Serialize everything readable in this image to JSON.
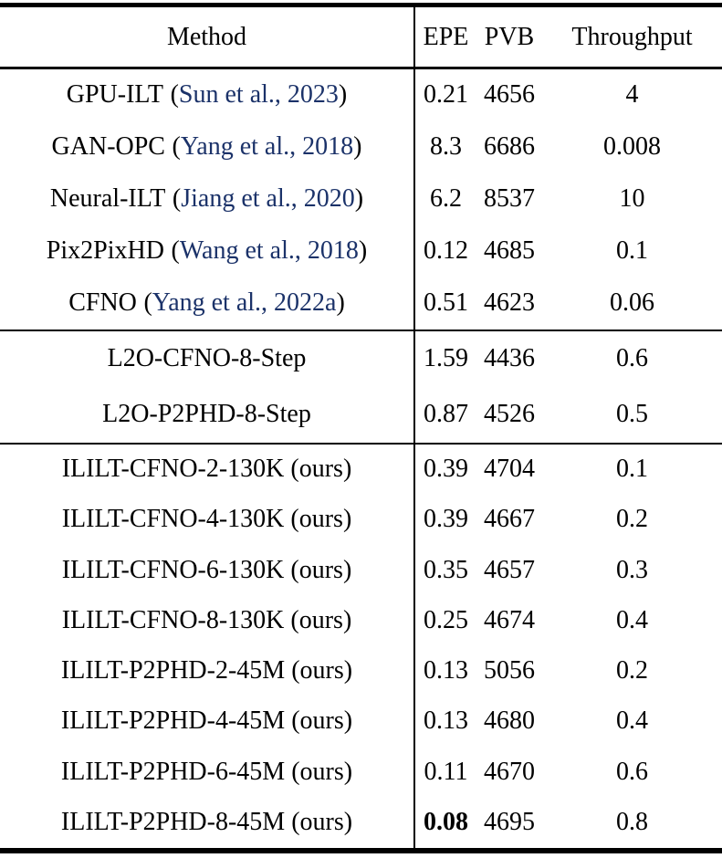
{
  "style": {
    "citation_color": "#1b3269",
    "text_color": "#000000",
    "rule_color": "#000000"
  },
  "header": {
    "method": "Method",
    "epe": "EPE",
    "pvb": "PVB",
    "throughput": "Throughput"
  },
  "sections": [
    {
      "rows": [
        {
          "method_name": "GPU-ILT",
          "citation": "Sun et al., 2023",
          "epe": "0.21",
          "pvb": "4656",
          "throughput": "4"
        },
        {
          "method_name": "GAN-OPC",
          "citation": "Yang et al., 2018",
          "epe": "8.3",
          "pvb": "6686",
          "throughput": "0.008"
        },
        {
          "method_name": "Neural-ILT",
          "citation": "Jiang et al., 2020",
          "epe": "6.2",
          "pvb": "8537",
          "throughput": "10"
        },
        {
          "method_name": "Pix2PixHD",
          "citation": "Wang et al., 2018",
          "epe": "0.12",
          "pvb": "4685",
          "throughput": "0.1"
        },
        {
          "method_name": "CFNO",
          "citation": "Yang et al., 2022a",
          "epe": "0.51",
          "pvb": "4623",
          "throughput": "0.06"
        }
      ]
    },
    {
      "rows": [
        {
          "method_name": "L2O-CFNO-8-Step",
          "epe": "1.59",
          "pvb": "4436",
          "throughput": "0.6"
        },
        {
          "method_name": "L2O-P2PHD-8-Step",
          "epe": "0.87",
          "pvb": "4526",
          "throughput": "0.5"
        }
      ]
    },
    {
      "rows": [
        {
          "method_name": "ILILT-CFNO-2-130K (ours)",
          "epe": "0.39",
          "pvb": "4704",
          "throughput": "0.1"
        },
        {
          "method_name": "ILILT-CFNO-4-130K (ours)",
          "epe": "0.39",
          "pvb": "4667",
          "throughput": "0.2"
        },
        {
          "method_name": "ILILT-CFNO-6-130K (ours)",
          "epe": "0.35",
          "pvb": "4657",
          "throughput": "0.3"
        },
        {
          "method_name": "ILILT-CFNO-8-130K (ours)",
          "epe": "0.25",
          "pvb": "4674",
          "throughput": "0.4"
        },
        {
          "method_name": "ILILT-P2PHD-2-45M (ours)",
          "epe": "0.13",
          "pvb": "5056",
          "throughput": "0.2"
        },
        {
          "method_name": "ILILT-P2PHD-4-45M (ours)",
          "epe": "0.13",
          "pvb": "4680",
          "throughput": "0.4"
        },
        {
          "method_name": "ILILT-P2PHD-6-45M (ours)",
          "epe": "0.11",
          "pvb": "4670",
          "throughput": "0.6"
        },
        {
          "method_name": "ILILT-P2PHD-8-45M (ours)",
          "epe": "0.08",
          "epe_bold": true,
          "pvb": "4695",
          "throughput": "0.8"
        }
      ]
    }
  ]
}
